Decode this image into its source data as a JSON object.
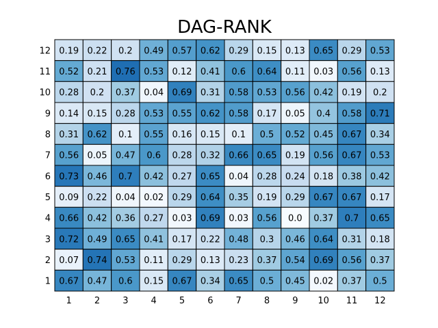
{
  "chart_data": {
    "type": "heatmap",
    "title": "DAG-RANK",
    "xlabel": "",
    "ylabel": "",
    "x_ticks": [
      "1",
      "2",
      "3",
      "4",
      "5",
      "6",
      "7",
      "8",
      "9",
      "10",
      "11",
      "12"
    ],
    "y_ticks": [
      "1",
      "2",
      "3",
      "4",
      "5",
      "6",
      "7",
      "8",
      "9",
      "10",
      "11",
      "12"
    ],
    "colormap": "Blues",
    "grid": true,
    "values_labels": [
      [
        "0.19",
        "0.22",
        "0.2",
        "0.49",
        "0.57",
        "0.62",
        "0.29",
        "0.15",
        "0.13",
        "0.65",
        "0.29",
        "0.53"
      ],
      [
        "0.52",
        "0.21",
        "0.76",
        "0.53",
        "0.12",
        "0.41",
        "0.6",
        "0.64",
        "0.11",
        "0.03",
        "0.56",
        "0.13"
      ],
      [
        "0.28",
        "0.2",
        "0.37",
        "0.04",
        "0.69",
        "0.31",
        "0.58",
        "0.53",
        "0.56",
        "0.42",
        "0.19",
        "0.2"
      ],
      [
        "0.14",
        "0.15",
        "0.28",
        "0.53",
        "0.55",
        "0.62",
        "0.58",
        "0.17",
        "0.05",
        "0.4",
        "0.58",
        "0.71"
      ],
      [
        "0.31",
        "0.62",
        "0.1",
        "0.55",
        "0.16",
        "0.15",
        "0.1",
        "0.5",
        "0.52",
        "0.45",
        "0.67",
        "0.34"
      ],
      [
        "0.56",
        "0.05",
        "0.47",
        "0.6",
        "0.28",
        "0.32",
        "0.66",
        "0.65",
        "0.19",
        "0.56",
        "0.67",
        "0.53"
      ],
      [
        "0.73",
        "0.46",
        "0.7",
        "0.42",
        "0.27",
        "0.65",
        "0.04",
        "0.28",
        "0.24",
        "0.18",
        "0.38",
        "0.42"
      ],
      [
        "0.09",
        "0.22",
        "0.04",
        "0.02",
        "0.29",
        "0.64",
        "0.35",
        "0.19",
        "0.29",
        "0.67",
        "0.67",
        "0.17"
      ],
      [
        "0.66",
        "0.42",
        "0.36",
        "0.27",
        "0.03",
        "0.69",
        "0.03",
        "0.56",
        "0.0",
        "0.37",
        "0.7",
        "0.65"
      ],
      [
        "0.72",
        "0.49",
        "0.65",
        "0.41",
        "0.17",
        "0.22",
        "0.48",
        "0.3",
        "0.46",
        "0.64",
        "0.31",
        "0.18"
      ],
      [
        "0.07",
        "0.74",
        "0.53",
        "0.11",
        "0.29",
        "0.13",
        "0.23",
        "0.37",
        "0.54",
        "0.69",
        "0.56",
        "0.37"
      ],
      [
        "0.67",
        "0.47",
        "0.6",
        "0.15",
        "0.67",
        "0.34",
        "0.65",
        "0.5",
        "0.45",
        "0.02",
        "0.37",
        "0.5"
      ]
    ]
  }
}
